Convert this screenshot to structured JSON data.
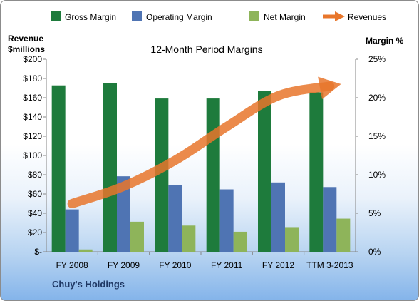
{
  "chart_data": {
    "type": "bar",
    "title": "12-Month Period Margins",
    "company": "Chuy's Holdings",
    "left_axis_label_line1": "Revenue",
    "left_axis_label_line2": "$millions",
    "right_axis_label": "Margin %",
    "categories": [
      "FY 2008",
      "FY 2009",
      "FY 2010",
      "FY 2011",
      "FY 2012",
      "TTM 3-2013"
    ],
    "left_ticks": [
      "$-",
      "$20",
      "$40",
      "$60",
      "$80",
      "$100",
      "$120",
      "$140",
      "$160",
      "$180",
      "$200"
    ],
    "right_ticks": [
      "0%",
      "5%",
      "10%",
      "15%",
      "20%",
      "25%"
    ],
    "left_ylim": [
      0,
      200
    ],
    "right_ylim": [
      0,
      25
    ],
    "series": [
      {
        "name": "Gross Margin",
        "axis": "right",
        "color": "#1e7b3c",
        "values": [
          21.6,
          21.9,
          19.9,
          19.9,
          20.9,
          20.7
        ]
      },
      {
        "name": "Operating Margin",
        "axis": "right",
        "color": "#4f74b3",
        "values": [
          5.5,
          9.8,
          8.7,
          8.1,
          9.0,
          8.4
        ]
      },
      {
        "name": "Net Margin",
        "axis": "right",
        "color": "#8eb45a",
        "values": [
          0.3,
          3.9,
          3.4,
          2.6,
          3.2,
          4.3
        ]
      }
    ],
    "revenues": {
      "name": "Revenues",
      "axis": "left",
      "color": "#e8762b",
      "x": [
        "FY 2008",
        "FY 2009",
        "FY 2010",
        "FY 2011",
        "FY 2012",
        "TTM 3-2013"
      ],
      "values": [
        50,
        68,
        95,
        130,
        162,
        172
      ]
    },
    "grid": false,
    "legend_position": "top"
  }
}
